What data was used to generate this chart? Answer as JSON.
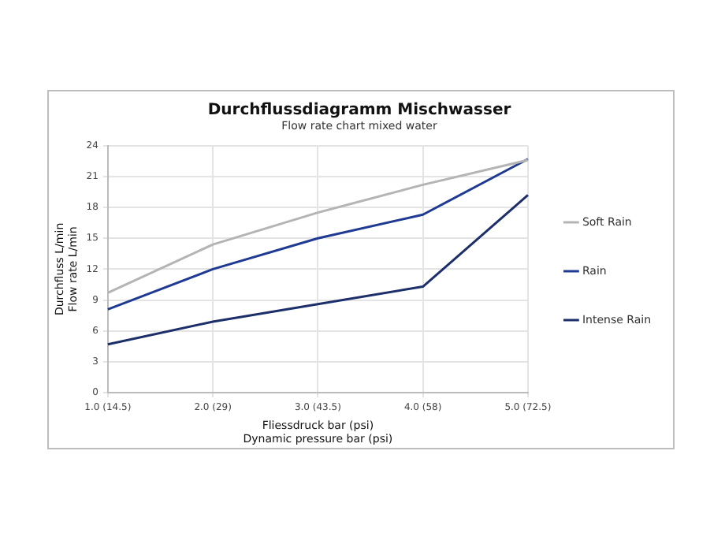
{
  "chart_data": {
    "type": "line",
    "title": "Durchflussdiagramm Mischwasser",
    "subtitle": "Flow rate chart mixed water",
    "xlabel": "Fliessdruck bar (psi)\nDynamic pressure bar (psi)",
    "ylabel": "Durchfluss L/min\nFlow rate L/min",
    "categories": [
      "1.0 (14.5)",
      "2.0 (29)",
      "3.0 (43.5)",
      "4.0 (58)",
      "5.0 (72.5)"
    ],
    "series": [
      {
        "name": "Soft Rain",
        "color": "#b4b4b4",
        "values": [
          9.7,
          14.4,
          17.5,
          20.2,
          22.6
        ]
      },
      {
        "name": "Rain",
        "color": "#1f3a93",
        "values": [
          8.1,
          12.0,
          15.0,
          17.3,
          22.7
        ]
      },
      {
        "name": "Intense Rain",
        "color": "#1d2f6a",
        "values": [
          4.7,
          6.9,
          8.6,
          10.3,
          19.2
        ]
      }
    ],
    "ylim": [
      0,
      24
    ],
    "yticks": [
      0,
      3,
      6,
      9,
      12,
      15,
      18,
      21,
      24
    ],
    "grid": true,
    "legend": "right",
    "marker": "none",
    "line_style": "solid"
  }
}
